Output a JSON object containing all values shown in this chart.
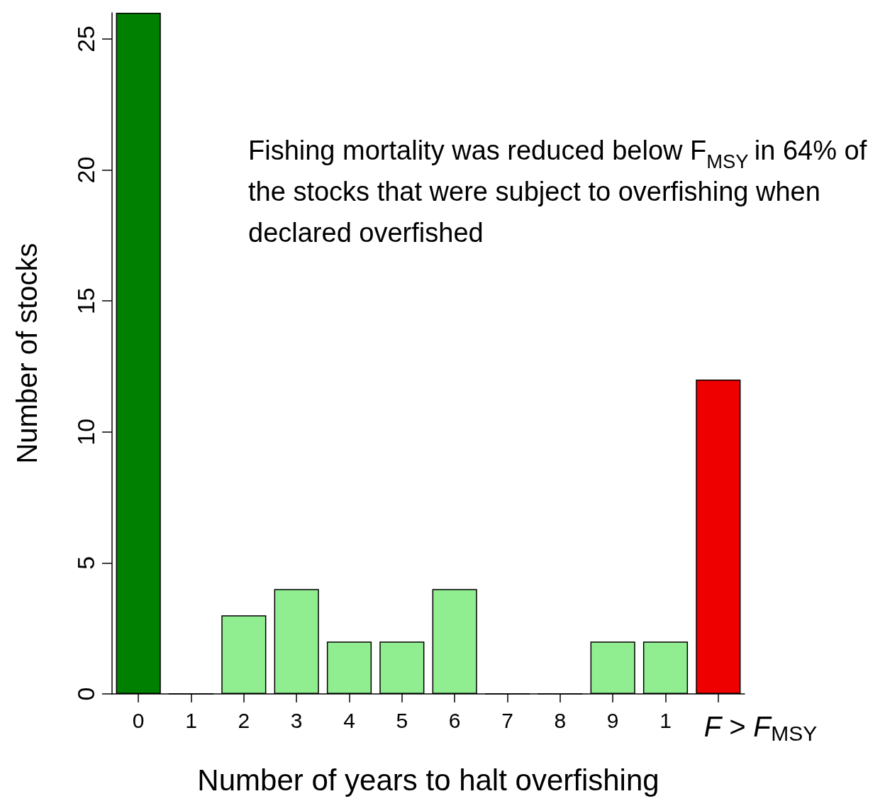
{
  "chart_data": {
    "type": "bar",
    "xlabel": "Number of years to halt overfishing",
    "ylabel": "Number of stocks",
    "categories": [
      "0",
      "1",
      "2",
      "3",
      "4",
      "5",
      "6",
      "7",
      "8",
      "9",
      "1",
      "F > F$_{MSY}$"
    ],
    "values": [
      26,
      0,
      3,
      4,
      2,
      2,
      4,
      0,
      0,
      2,
      2,
      12
    ],
    "colors": [
      "#008000",
      "#90ee90",
      "#90ee90",
      "#90ee90",
      "#90ee90",
      "#90ee90",
      "#90ee90",
      "#90ee90",
      "#90ee90",
      "#90ee90",
      "#90ee90",
      "#ee0000"
    ],
    "ylim": [
      0,
      26
    ],
    "yticks": [
      0,
      5,
      10,
      15,
      20,
      25
    ],
    "grid": false,
    "annotations": [
      "Fishing mortality was reduced below F$_{MSY}$ in 64% of the stocks that were subject to overfishing when declared overfished"
    ]
  }
}
